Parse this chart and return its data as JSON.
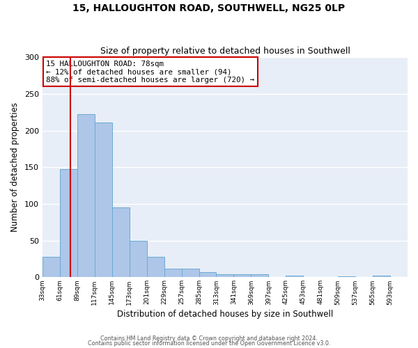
{
  "title": "15, HALLOUGHTON ROAD, SOUTHWELL, NG25 0LP",
  "subtitle": "Size of property relative to detached houses in Southwell",
  "xlabel": "Distribution of detached houses by size in Southwell",
  "ylabel": "Number of detached properties",
  "bar_color": "#aec6e8",
  "bar_edge_color": "#6aaad4",
  "bg_color": "#e8eef7",
  "grid_color": "#ffffff",
  "bin_edges": [
    33,
    61,
    89,
    117,
    145,
    173,
    201,
    229,
    257,
    285,
    313,
    341,
    369,
    397,
    425,
    453,
    481,
    509,
    537,
    565,
    593
  ],
  "bar_heights": [
    28,
    147,
    222,
    211,
    95,
    50,
    28,
    12,
    12,
    7,
    4,
    4,
    4,
    0,
    2,
    0,
    0,
    1,
    0,
    2
  ],
  "tick_labels": [
    "33sqm",
    "61sqm",
    "89sqm",
    "117sqm",
    "145sqm",
    "173sqm",
    "201sqm",
    "229sqm",
    "257sqm",
    "285sqm",
    "313sqm",
    "341sqm",
    "369sqm",
    "397sqm",
    "425sqm",
    "453sqm",
    "481sqm",
    "509sqm",
    "537sqm",
    "565sqm",
    "593sqm"
  ],
  "vline_x": 78,
  "vline_color": "#cc0000",
  "annotation_line1": "15 HALLOUGHTON ROAD: 78sqm",
  "annotation_line2": "← 12% of detached houses are smaller (94)",
  "annotation_line3": "88% of semi-detached houses are larger (720) →",
  "annotation_box_color": "#cc0000",
  "ylim": [
    0,
    300
  ],
  "yticks": [
    0,
    50,
    100,
    150,
    200,
    250,
    300
  ],
  "footer_line1": "Contains HM Land Registry data © Crown copyright and database right 2024.",
  "footer_line2": "Contains public sector information licensed under the Open Government Licence v3.0."
}
